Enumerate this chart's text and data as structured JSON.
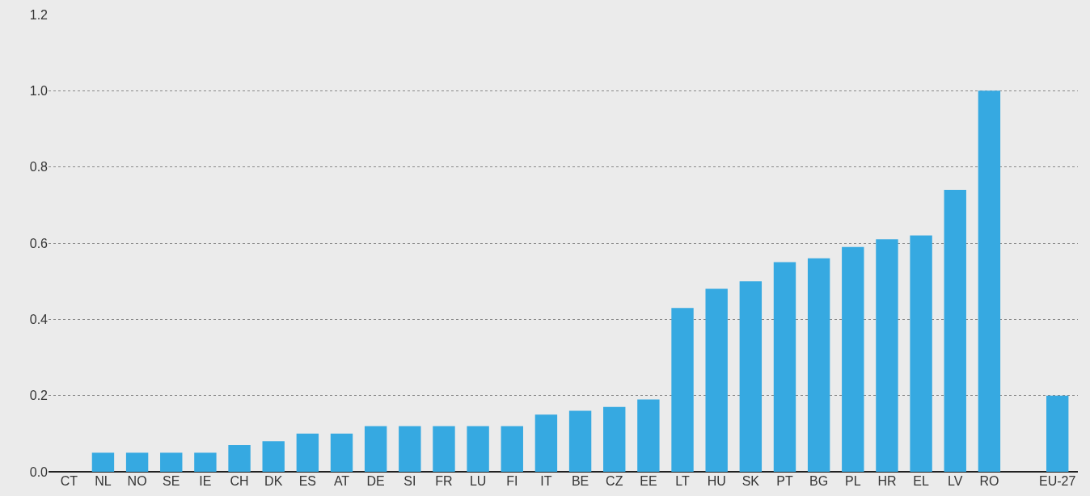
{
  "chart_data": {
    "type": "bar",
    "categories": [
      "CT",
      "NL",
      "NO",
      "SE",
      "IE",
      "CH",
      "DK",
      "ES",
      "AT",
      "DE",
      "SI",
      "FR",
      "LU",
      "FI",
      "IT",
      "BE",
      "CZ",
      "EE",
      "LT",
      "HU",
      "SK",
      "PT",
      "BG",
      "PL",
      "HR",
      "EL",
      "LV",
      "RO",
      null,
      "EU-27"
    ],
    "values": [
      0,
      0.05,
      0.05,
      0.05,
      0.05,
      0.07,
      0.08,
      0.1,
      0.1,
      0.12,
      0.12,
      0.12,
      0.12,
      0.12,
      0.15,
      0.16,
      0.17,
      0.19,
      0.43,
      0.48,
      0.5,
      0.55,
      0.56,
      0.59,
      0.61,
      0.62,
      0.74,
      1.0,
      null,
      0.2
    ],
    "color": "#36a9e1",
    "ylim": [
      0,
      1.2
    ],
    "yticks": [
      {
        "value": 0,
        "label": "0.0"
      },
      {
        "value": 0.2,
        "label": "0.2"
      },
      {
        "value": 0.4,
        "label": "0.4"
      },
      {
        "value": 0.6,
        "label": "0.6"
      },
      {
        "value": 0.8,
        "label": "0.8"
      },
      {
        "value": 1.0,
        "label": "1.0"
      },
      {
        "value": 1.2,
        "label": "1.2"
      }
    ],
    "grid": "y"
  }
}
